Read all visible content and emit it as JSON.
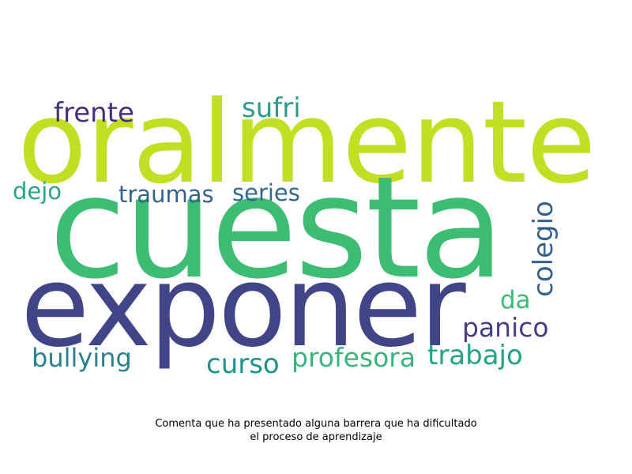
{
  "caption": {
    "line1": "Comenta que ha presentado alguna barrera que ha dificultado",
    "line2": "el proceso de aprendizaje"
  },
  "words": [
    {
      "text": "oralmente",
      "color": "#c2df23"
    },
    {
      "text": "cuesta",
      "color": "#3dbc74"
    },
    {
      "text": "exponer",
      "color": "#414487"
    },
    {
      "text": "frente",
      "color": "#472f7d"
    },
    {
      "text": "sufri",
      "color": "#2a9d8a"
    },
    {
      "text": "dejo",
      "color": "#2ba58a"
    },
    {
      "text": "traumas",
      "color": "#33638d"
    },
    {
      "text": "series",
      "color": "#306a8e"
    },
    {
      "text": "colegio",
      "color": "#35608d"
    },
    {
      "text": "da",
      "color": "#3cbc75"
    },
    {
      "text": "panico",
      "color": "#433e85"
    },
    {
      "text": "bullying",
      "color": "#26828e"
    },
    {
      "text": "curso",
      "color": "#21918c"
    },
    {
      "text": "profesora",
      "color": "#35b779"
    },
    {
      "text": "trabajo",
      "color": "#20a386"
    }
  ]
}
